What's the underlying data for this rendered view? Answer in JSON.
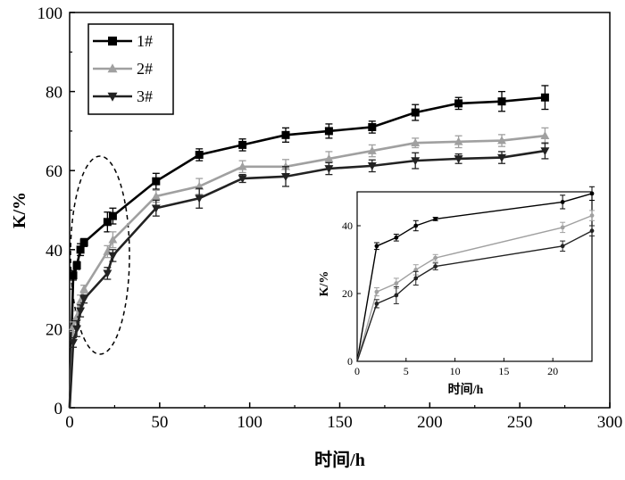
{
  "chart_data": [
    {
      "type": "line",
      "xlabel": "时间/h",
      "ylabel": "K/%",
      "xlim": [
        0,
        300
      ],
      "ylim": [
        0,
        100
      ],
      "xticks": [
        "0",
        "50",
        "100",
        "150",
        "200",
        "250",
        "300"
      ],
      "yticks": [
        "0",
        "20",
        "40",
        "60",
        "80",
        "100"
      ],
      "legend_position": "top-left",
      "annotation": "dashed ellipse highlighting early-time region (approx. 0–30 h)",
      "series": [
        {
          "name": "1#",
          "color": "#000000",
          "marker": "square",
          "x": [
            0,
            2,
            4,
            6,
            8,
            21,
            24,
            48,
            72,
            96,
            120,
            144,
            168,
            192,
            216,
            240,
            264
          ],
          "y": [
            0,
            33.5,
            36,
            40,
            41.8,
            47,
            48.5,
            57.3,
            64,
            66.5,
            69,
            70,
            71,
            74.7,
            77,
            77.5,
            78.5
          ],
          "err": [
            0,
            1.2,
            1.0,
            1.5,
            1.0,
            2.5,
            2.0,
            2.0,
            1.5,
            1.5,
            1.8,
            1.8,
            1.5,
            2.0,
            1.5,
            2.5,
            3.0
          ]
        },
        {
          "name": "2#",
          "color": "#a0a0a0",
          "marker": "triangle-up",
          "x": [
            0,
            2,
            4,
            6,
            8,
            21,
            24,
            48,
            72,
            96,
            120,
            144,
            168,
            192,
            216,
            240,
            264
          ],
          "y": [
            0,
            20.5,
            23,
            27,
            30,
            39.5,
            42.5,
            53.5,
            56,
            61,
            61,
            63,
            65,
            67,
            67.3,
            67.6,
            68.8
          ],
          "err": [
            0,
            1.2,
            1.5,
            1.5,
            1.0,
            1.5,
            2.0,
            1.5,
            2.0,
            1.5,
            1.8,
            1.8,
            1.5,
            1.2,
            1.5,
            1.5,
            2.0
          ]
        },
        {
          "name": "3#",
          "color": "#222222",
          "marker": "triangle-down",
          "x": [
            0,
            2,
            4,
            6,
            8,
            21,
            24,
            48,
            72,
            96,
            120,
            144,
            168,
            192,
            216,
            240,
            264
          ],
          "y": [
            0,
            16.5,
            20,
            24.5,
            27.5,
            34,
            38.5,
            50.5,
            53,
            58,
            58.5,
            60.5,
            61.2,
            62.5,
            63,
            63.3,
            65
          ],
          "err": [
            0,
            1.2,
            2.0,
            1.5,
            1.0,
            1.5,
            1.5,
            2.0,
            2.5,
            1.0,
            2.5,
            1.5,
            1.5,
            2.0,
            1.2,
            1.5,
            2.0
          ]
        }
      ]
    },
    {
      "type": "line",
      "role": "inset",
      "xlabel": "时间/h",
      "ylabel": "K/%",
      "xlim": [
        0,
        24
      ],
      "ylim": [
        0,
        50
      ],
      "xticks": [
        "0",
        "5",
        "10",
        "15",
        "20"
      ],
      "yticks": [
        "0",
        "20",
        "40"
      ],
      "series": [
        {
          "name": "1#",
          "color": "#000000",
          "x": [
            0,
            2,
            4,
            6,
            8,
            21,
            24
          ],
          "y": [
            0,
            34,
            36.5,
            40,
            42,
            47,
            49.5
          ],
          "err": [
            0,
            1.0,
            1.0,
            1.5,
            0.5,
            2.0,
            2.0
          ]
        },
        {
          "name": "2#",
          "color": "#a0a0a0",
          "x": [
            0,
            2,
            4,
            6,
            8,
            21,
            24
          ],
          "y": [
            0,
            20.5,
            23,
            27,
            30.5,
            39.5,
            43
          ],
          "err": [
            0,
            1.2,
            1.5,
            1.5,
            1.0,
            1.5,
            1.5
          ]
        },
        {
          "name": "3#",
          "color": "#222222",
          "x": [
            0,
            2,
            4,
            6,
            8,
            21,
            24
          ],
          "y": [
            0,
            17,
            19.5,
            24.5,
            28,
            34,
            38.5
          ],
          "err": [
            0,
            1.2,
            2.5,
            2.0,
            1.0,
            1.5,
            1.5
          ]
        }
      ]
    }
  ]
}
